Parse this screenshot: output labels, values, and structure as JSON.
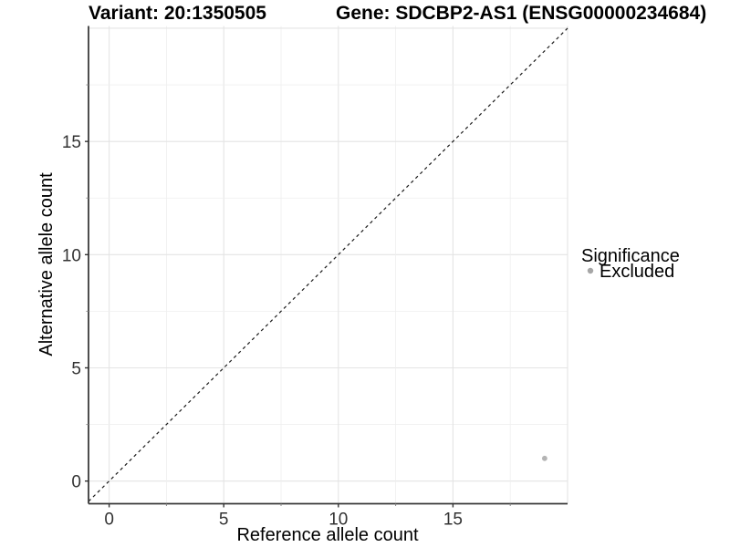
{
  "header": {
    "variant_title": "Variant: 20:1350505",
    "gene_title": "Gene: SDCBP2-AS1 (ENSG00000234684)"
  },
  "chart_data": {
    "type": "scatter",
    "title_left": "Variant: 20:1350505",
    "title_right": "Gene: SDCBP2-AS1 (ENSG00000234684)",
    "xlabel": "Reference allele count",
    "ylabel": "Alternative allele count",
    "xlim": [
      -0.9,
      20.0
    ],
    "ylim": [
      -1.0,
      20.1
    ],
    "x_ticks": [
      0,
      5,
      10,
      15
    ],
    "y_ticks": [
      0,
      5,
      10,
      15
    ],
    "minor_tick_step": 2.5,
    "grid": true,
    "grid_max": 20,
    "identity_line": {
      "equation": "y = x",
      "style": "dashed",
      "color": "#1a1a1a"
    },
    "points": [
      {
        "x": 19,
        "y": 1,
        "significance": "Excluded"
      }
    ],
    "point_color": "#b4b4b4",
    "legend": {
      "title": "Significance",
      "position": "right",
      "items": [
        {
          "label": "Excluded",
          "color": "#a6a6a6"
        }
      ]
    }
  },
  "colors": {
    "background": "#ffffff",
    "grid_major": "#e4e4e4",
    "grid_minor": "#efefef",
    "axis_line": "#3a3a3a",
    "tick_major": "#333333",
    "tick_minor": "#888888",
    "excluded_point": "#b4b4b4"
  }
}
